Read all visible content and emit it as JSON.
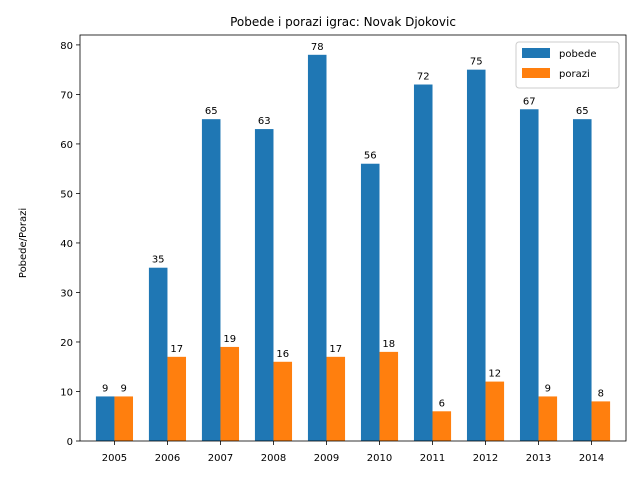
{
  "chart_data": {
    "type": "bar",
    "title": "Pobede i porazi igrac: Novak Djokovic",
    "xlabel": "",
    "ylabel": "Pobede/Porazi",
    "categories": [
      "2005",
      "2006",
      "2007",
      "2008",
      "2009",
      "2010",
      "2011",
      "2012",
      "2013",
      "2014"
    ],
    "series": [
      {
        "name": "pobede",
        "values": [
          9,
          35,
          65,
          63,
          78,
          56,
          72,
          75,
          67,
          65
        ],
        "color": "#1f77b4"
      },
      {
        "name": "porazi",
        "values": [
          9,
          17,
          19,
          16,
          17,
          18,
          6,
          12,
          9,
          8
        ],
        "color": "#ff7f0e"
      }
    ],
    "ylim": [
      0,
      82
    ],
    "yticks": [
      0,
      10,
      20,
      30,
      40,
      50,
      60,
      70,
      80
    ],
    "grid": false,
    "legend": "top-right"
  }
}
